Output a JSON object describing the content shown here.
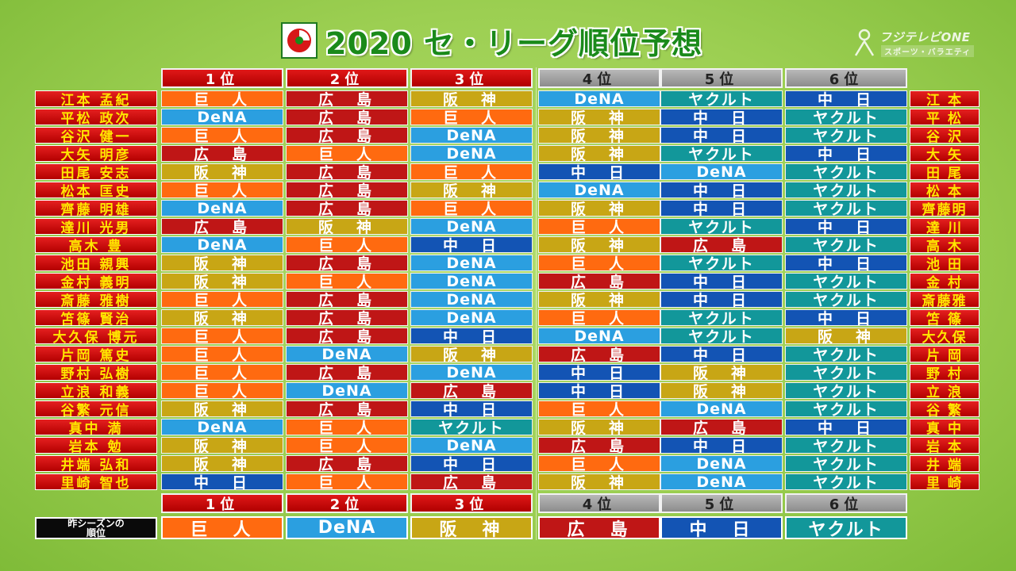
{
  "title": "2020 セ・リーグ順位予想",
  "channel": {
    "name": "フジテレビONE",
    "sub": "スポーツ・バラエティ"
  },
  "rank_headers": [
    "1位",
    "2位",
    "3位",
    "4位",
    "5位",
    "6位"
  ],
  "team_colors": {
    "巨人": "#ff6a10",
    "広島": "#bf1616",
    "阪神": "#c8a615",
    "DeNA": "#2b9fe0",
    "中日": "#1354b4",
    "ヤクルト": "#12979a"
  },
  "teams_display": {
    "巨人": "巨　人",
    "広島": "広　島",
    "阪神": "阪　神",
    "DeNA": "DeNA",
    "中日": "中　日",
    "ヤクルト": "ヤクルト"
  },
  "predictions": [
    {
      "name": "江本 孟紀",
      "short": "江 本",
      "ranks": [
        "巨人",
        "広島",
        "阪神",
        "DeNA",
        "ヤクルト",
        "中日"
      ]
    },
    {
      "name": "平松 政次",
      "short": "平 松",
      "ranks": [
        "DeNA",
        "広島",
        "巨人",
        "阪神",
        "中日",
        "ヤクルト"
      ]
    },
    {
      "name": "谷沢 健一",
      "short": "谷 沢",
      "ranks": [
        "巨人",
        "広島",
        "DeNA",
        "阪神",
        "中日",
        "ヤクルト"
      ]
    },
    {
      "name": "大矢 明彦",
      "short": "大 矢",
      "ranks": [
        "広島",
        "巨人",
        "DeNA",
        "阪神",
        "ヤクルト",
        "中日"
      ]
    },
    {
      "name": "田尾 安志",
      "short": "田 尾",
      "ranks": [
        "阪神",
        "広島",
        "巨人",
        "中日",
        "DeNA",
        "ヤクルト"
      ]
    },
    {
      "name": "松本 匡史",
      "short": "松 本",
      "ranks": [
        "巨人",
        "広島",
        "阪神",
        "DeNA",
        "中日",
        "ヤクルト"
      ]
    },
    {
      "name": "齊藤 明雄",
      "short": "齊藤明",
      "ranks": [
        "DeNA",
        "広島",
        "巨人",
        "阪神",
        "中日",
        "ヤクルト"
      ]
    },
    {
      "name": "達川 光男",
      "short": "達 川",
      "ranks": [
        "広島",
        "阪神",
        "DeNA",
        "巨人",
        "ヤクルト",
        "中日"
      ]
    },
    {
      "name": "高木 豊",
      "short": "高 木",
      "ranks": [
        "DeNA",
        "巨人",
        "中日",
        "阪神",
        "広島",
        "ヤクルト"
      ]
    },
    {
      "name": "池田 親興",
      "short": "池 田",
      "ranks": [
        "阪神",
        "広島",
        "DeNA",
        "巨人",
        "ヤクルト",
        "中日"
      ]
    },
    {
      "name": "金村 義明",
      "short": "金 村",
      "ranks": [
        "阪神",
        "巨人",
        "DeNA",
        "広島",
        "中日",
        "ヤクルト"
      ]
    },
    {
      "name": "斎藤 雅樹",
      "short": "斎藤雅",
      "ranks": [
        "巨人",
        "広島",
        "DeNA",
        "阪神",
        "中日",
        "ヤクルト"
      ]
    },
    {
      "name": "笘篠 賢治",
      "short": "笘 篠",
      "ranks": [
        "阪神",
        "広島",
        "DeNA",
        "巨人",
        "ヤクルト",
        "中日"
      ]
    },
    {
      "name": "大久保 博元",
      "short": "大久保",
      "ranks": [
        "巨人",
        "広島",
        "中日",
        "DeNA",
        "ヤクルト",
        "阪神"
      ]
    },
    {
      "name": "片岡 篤史",
      "short": "片 岡",
      "ranks": [
        "巨人",
        "DeNA",
        "阪神",
        "広島",
        "中日",
        "ヤクルト"
      ]
    },
    {
      "name": "野村 弘樹",
      "short": "野 村",
      "ranks": [
        "巨人",
        "広島",
        "DeNA",
        "中日",
        "阪神",
        "ヤクルト"
      ]
    },
    {
      "name": "立浪 和義",
      "short": "立 浪",
      "ranks": [
        "巨人",
        "DeNA",
        "広島",
        "中日",
        "阪神",
        "ヤクルト"
      ]
    },
    {
      "name": "谷繁 元信",
      "short": "谷 繁",
      "ranks": [
        "阪神",
        "広島",
        "中日",
        "巨人",
        "DeNA",
        "ヤクルト"
      ]
    },
    {
      "name": "真中 満",
      "short": "真 中",
      "ranks": [
        "DeNA",
        "巨人",
        "ヤクルト",
        "阪神",
        "広島",
        "中日"
      ]
    },
    {
      "name": "岩本 勉",
      "short": "岩 本",
      "ranks": [
        "阪神",
        "巨人",
        "DeNA",
        "広島",
        "中日",
        "ヤクルト"
      ]
    },
    {
      "name": "井端 弘和",
      "short": "井 端",
      "ranks": [
        "阪神",
        "広島",
        "中日",
        "巨人",
        "DeNA",
        "ヤクルト"
      ]
    },
    {
      "name": "里崎 智也",
      "short": "里 崎",
      "ranks": [
        "中日",
        "巨人",
        "広島",
        "阪神",
        "DeNA",
        "ヤクルト"
      ]
    }
  ],
  "last_season": {
    "label": "昨シーズンの\n順位",
    "ranks": [
      "巨人",
      "DeNA",
      "阪神",
      "広島",
      "中日",
      "ヤクルト"
    ]
  }
}
